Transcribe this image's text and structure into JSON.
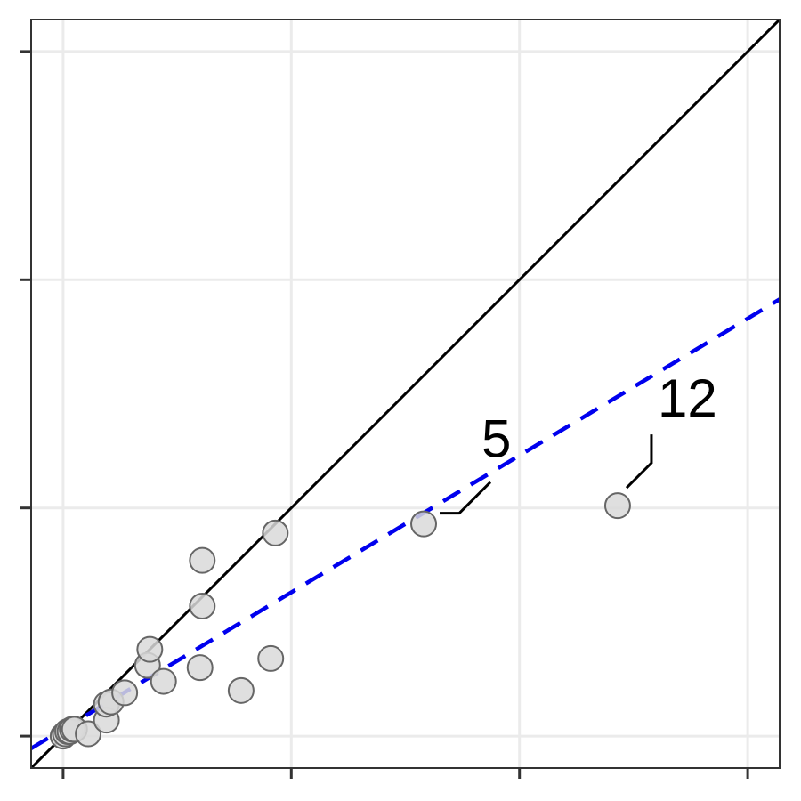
{
  "chart_data": {
    "type": "scatter",
    "title": "",
    "xlabel": "",
    "ylabel": "",
    "xlim": [
      -0.14,
      3.14
    ],
    "ylim": [
      -0.14,
      3.14
    ],
    "x_ticks": [
      0,
      1,
      2,
      3
    ],
    "y_ticks": [
      0,
      1,
      2,
      3
    ],
    "tick_labels_visible": false,
    "grid": true,
    "legend": "none",
    "points": [
      {
        "x": 0.0,
        "y": 0.0
      },
      {
        "x": 0.01,
        "y": 0.01
      },
      {
        "x": 0.02,
        "y": 0.02
      },
      {
        "x": 0.03,
        "y": 0.02
      },
      {
        "x": 0.04,
        "y": 0.03
      },
      {
        "x": 0.05,
        "y": 0.03
      },
      {
        "x": 0.11,
        "y": 0.01
      },
      {
        "x": 0.19,
        "y": 0.07
      },
      {
        "x": 0.19,
        "y": 0.14
      },
      {
        "x": 0.21,
        "y": 0.15
      },
      {
        "x": 0.27,
        "y": 0.19
      },
      {
        "x": 0.37,
        "y": 0.31
      },
      {
        "x": 0.38,
        "y": 0.38
      },
      {
        "x": 0.44,
        "y": 0.24
      },
      {
        "x": 0.6,
        "y": 0.3
      },
      {
        "x": 0.61,
        "y": 0.57
      },
      {
        "x": 0.61,
        "y": 0.77
      },
      {
        "x": 0.78,
        "y": 0.2
      },
      {
        "x": 0.91,
        "y": 0.34
      },
      {
        "x": 0.93,
        "y": 0.89
      },
      {
        "x": 1.58,
        "y": 0.93
      },
      {
        "x": 2.43,
        "y": 1.01
      }
    ],
    "labeled_points": [
      {
        "label": "5",
        "x": 1.58,
        "y": 0.93
      },
      {
        "label": "12",
        "x": 2.43,
        "y": 1.01
      }
    ],
    "reference_line": {
      "type": "identity",
      "slope": 1,
      "intercept": 0,
      "color": "#000000",
      "style": "solid"
    },
    "fit_line": {
      "slope": 0.6,
      "intercept": 0.03,
      "color": "#0000ee",
      "style": "dashed"
    },
    "colors": {
      "point_fill": "#d9d9d9",
      "point_stroke": "#666666",
      "grid": "#ebebeb",
      "panel_border": "#333333"
    }
  }
}
